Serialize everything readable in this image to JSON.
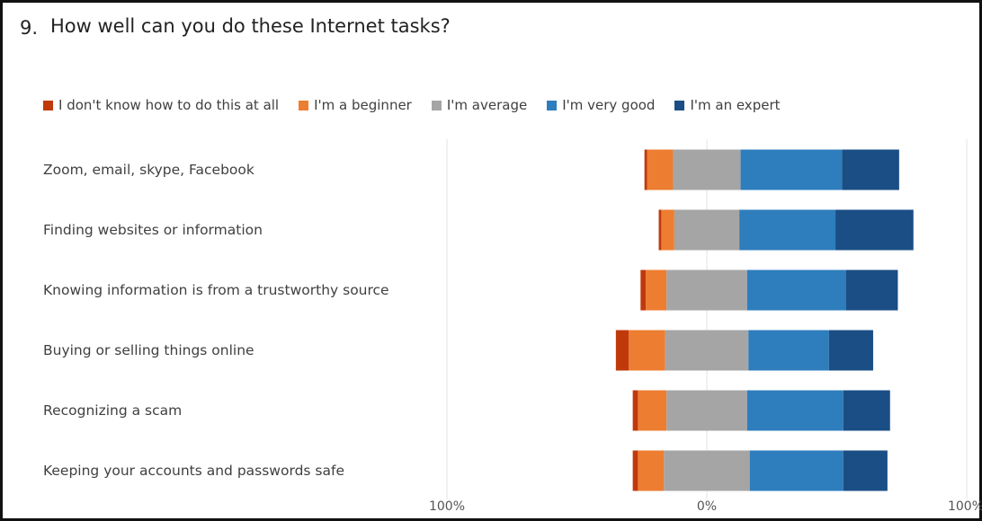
{
  "question": {
    "number": "9.",
    "title": "How well can you do these Internet tasks?"
  },
  "colors": {
    "dont_know": "#c0390b",
    "beginner": "#ed7d31",
    "average": "#a5a5a5",
    "very_good": "#2e7dbd",
    "expert": "#1a4e85",
    "gridline": "#e3e3e3"
  },
  "chart_data": {
    "type": "bar",
    "orientation": "horizontal",
    "stacking": "diverging",
    "title": "How well can you do these Internet tasks?",
    "categories": [
      "Zoom, email, skype, Facebook",
      "Finding websites or information",
      "Knowing information is from a trustworthy source",
      "Buying or selling things online",
      "Recognizing a scam",
      "Keeping your accounts and passwords safe"
    ],
    "series": [
      {
        "name": "I don't know how to do this at all",
        "color_key": "dont_know",
        "values": [
          1,
          1,
          2,
          5,
          2,
          2
        ]
      },
      {
        "name": "I'm a beginner",
        "color_key": "beginner",
        "values": [
          10,
          5,
          8,
          14,
          11,
          10
        ]
      },
      {
        "name": "I'm average",
        "color_key": "average",
        "values": [
          26,
          25,
          31,
          32,
          31,
          33
        ]
      },
      {
        "name": "I'm very good",
        "color_key": "very_good",
        "values": [
          39,
          37,
          38,
          31,
          37,
          36
        ]
      },
      {
        "name": "I'm an expert",
        "color_key": "expert",
        "values": [
          22,
          30,
          20,
          17,
          18,
          17
        ]
      }
    ],
    "xlim": [
      -100,
      100
    ],
    "x_tick_labels": [
      "100%",
      "0%",
      "100%"
    ],
    "legend_position": "top",
    "grid": true
  }
}
